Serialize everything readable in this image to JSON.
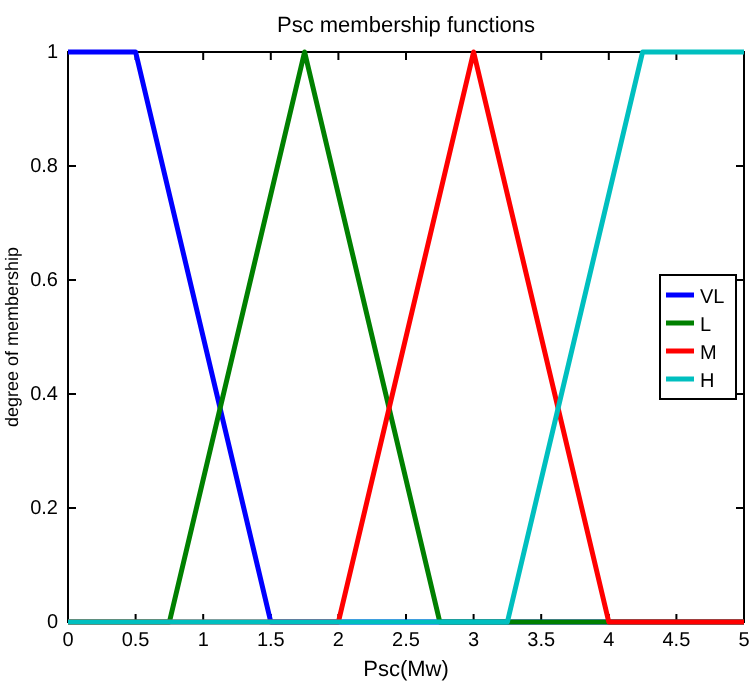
{
  "chart_data": {
    "type": "line",
    "title": "Psc membership functions",
    "xlabel": "Psc(Mw)",
    "ylabel": "degree of membership",
    "series": [
      {
        "name": "VL",
        "color": "#0000ff",
        "x": [
          0,
          0.5,
          1.5,
          5
        ],
        "values": [
          1,
          1,
          0,
          0
        ]
      },
      {
        "name": "L",
        "color": "#008000",
        "x": [
          0,
          0.75,
          1.75,
          2.75,
          5
        ],
        "values": [
          0,
          0,
          1,
          0,
          0
        ]
      },
      {
        "name": "M",
        "color": "#ff0000",
        "x": [
          0,
          2,
          3,
          4,
          5
        ],
        "values": [
          0,
          0,
          1,
          0,
          0
        ]
      },
      {
        "name": "H",
        "color": "#00bfbf",
        "x": [
          0,
          3.25,
          4.25,
          5
        ],
        "values": [
          0,
          0,
          1,
          1
        ]
      }
    ],
    "xlim": [
      0,
      5
    ],
    "xticks": [
      0,
      0.5,
      1,
      1.5,
      2,
      2.5,
      3,
      3.5,
      4,
      4.5,
      5
    ],
    "ylim": [
      0,
      1
    ],
    "yticks": [
      0,
      0.2,
      0.4,
      0.6,
      0.8,
      1
    ],
    "legend": "right",
    "grid": false,
    "marker": "none",
    "line_style": "solid"
  }
}
